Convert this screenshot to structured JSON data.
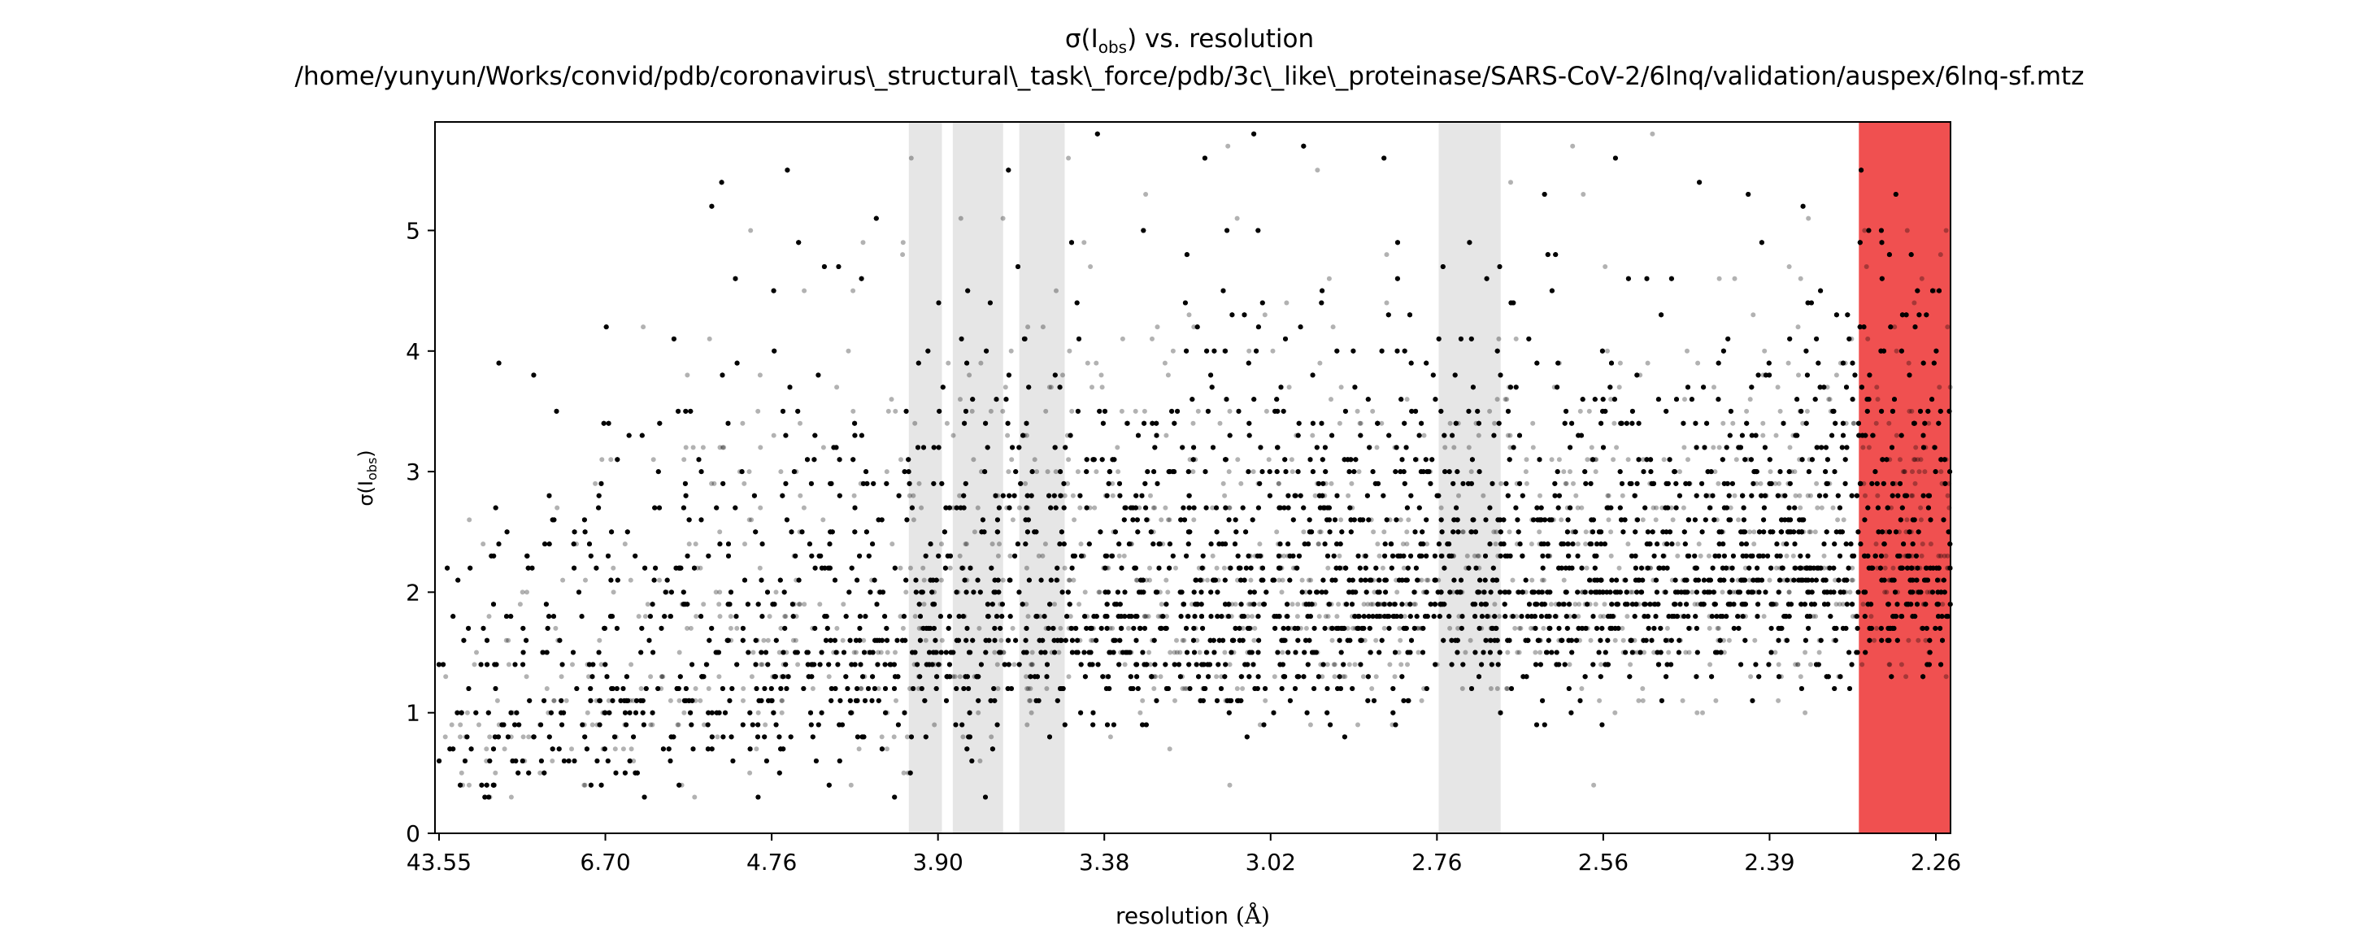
{
  "chart_data": {
    "type": "scatter",
    "title": {
      "line1_prefix": "σ(I",
      "line1_sub": "obs",
      "line1_suffix": ") vs. resolution",
      "line2": "/home/yunyun/Works/convid/pdb/coronavirus\\_structural\\_task\\_force/pdb/3c\\_like\\_proteinase/SARS-CoV-2/6lnq/validation/auspex/6lnq-sf.mtz"
    },
    "xlabel": {
      "text": "resolution ",
      "unit": "(Å)"
    },
    "ylabel": {
      "prefix": "σ(I",
      "sub": "obs",
      "suffix": ")"
    },
    "x_axis_scale": "reciprocal-square (1/d²)",
    "x_ticks": [
      "43.55",
      "6.70",
      "4.76",
      "3.90",
      "3.38",
      "3.02",
      "2.76",
      "2.56",
      "2.39",
      "2.26"
    ],
    "xlim_resolution": [
      43.55,
      2.215
    ],
    "y_ticks": [
      "0",
      "1",
      "2",
      "3",
      "4",
      "5"
    ],
    "ylim": [
      0,
      5.9
    ],
    "grid": false,
    "marker_color": "#000000",
    "ice_ring_color": "#e6e6e6",
    "cutoff_color": "#f05050",
    "ice_rings_resolution": [
      [
        3.95,
        3.82
      ],
      [
        3.78,
        3.61
      ],
      [
        3.56,
        3.43
      ],
      [
        2.72,
        2.64
      ]
    ],
    "high_res_cutoff_resolution": [
      2.285,
      2.215
    ],
    "point_density": [
      {
        "resolution": 43.55,
        "sigma_mode": 0.8,
        "sigma_spread": 0.5
      },
      {
        "resolution": 6.7,
        "sigma_mode": 1.2,
        "sigma_spread": 0.7
      },
      {
        "resolution": 4.76,
        "sigma_mode": 1.5,
        "sigma_spread": 0.8
      },
      {
        "resolution": 3.9,
        "sigma_mode": 1.75,
        "sigma_spread": 0.8
      },
      {
        "resolution": 3.38,
        "sigma_mode": 1.85,
        "sigma_spread": 0.7
      },
      {
        "resolution": 3.02,
        "sigma_mode": 1.9,
        "sigma_spread": 0.6
      },
      {
        "resolution": 2.76,
        "sigma_mode": 2.0,
        "sigma_spread": 0.6
      },
      {
        "resolution": 2.56,
        "sigma_mode": 2.05,
        "sigma_spread": 0.6
      },
      {
        "resolution": 2.39,
        "sigma_mode": 2.15,
        "sigma_spread": 0.6
      },
      {
        "resolution": 2.26,
        "sigma_mode": 2.3,
        "sigma_spread": 0.7
      }
    ],
    "sigma_step": 0.1
  }
}
